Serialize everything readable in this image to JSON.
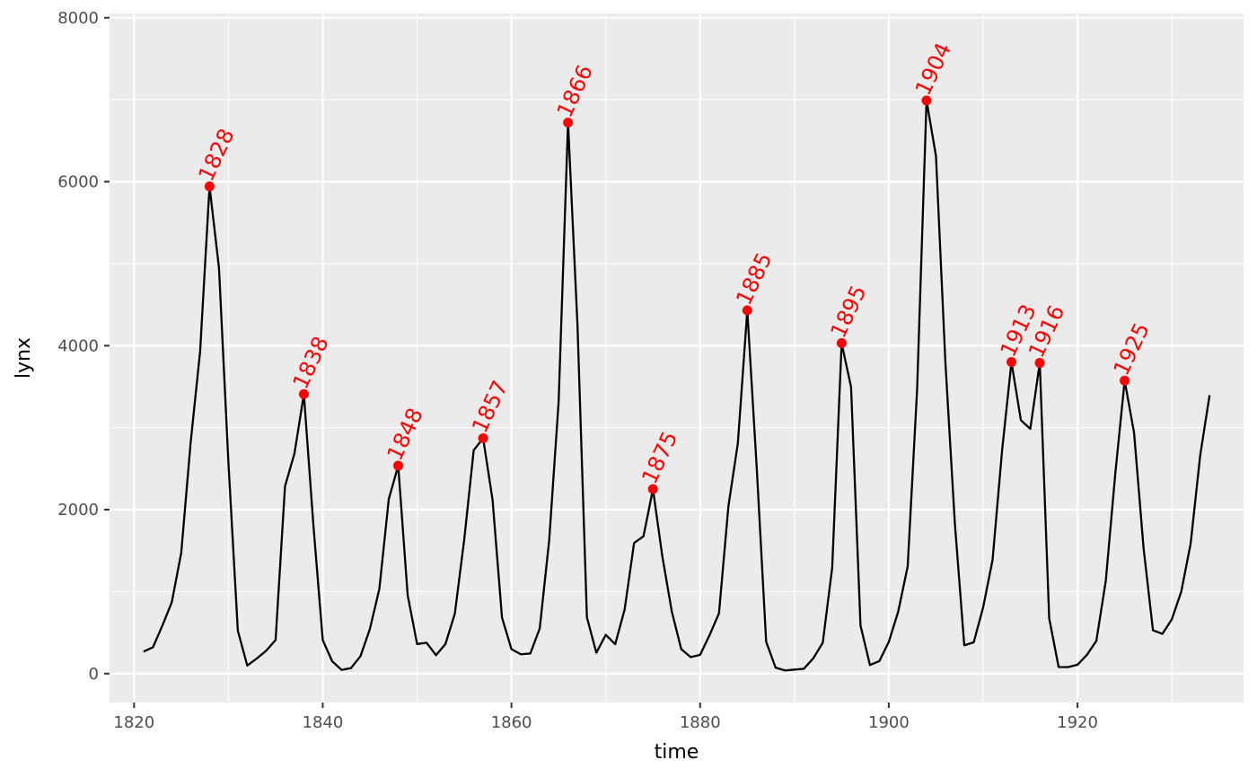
{
  "chart_data": {
    "type": "line",
    "xlabel": "time",
    "ylabel": "lynx",
    "xlim": [
      1817.4,
      1937.6
    ],
    "ylim": [
      -352.5,
      8052
    ],
    "x_ticks": [
      1820,
      1840,
      1860,
      1880,
      1900,
      1920
    ],
    "x_tick_labels": [
      "1820",
      "1840",
      "1860",
      "1880",
      "1900",
      "1920"
    ],
    "y_ticks": [
      0,
      2000,
      4000,
      6000,
      8000
    ],
    "y_tick_labels": [
      "0",
      "2000",
      "4000",
      "6000",
      "8000"
    ],
    "grid": true,
    "line_color": "#000000",
    "panel_color": "#ebebeb",
    "grid_color": "#ffffff",
    "series": [
      {
        "x": [
          1821,
          1822,
          1823,
          1824,
          1825,
          1826,
          1827,
          1828,
          1829,
          1830,
          1831,
          1832,
          1833,
          1834,
          1835,
          1836,
          1837,
          1838,
          1839,
          1840,
          1841,
          1842,
          1843,
          1844,
          1845,
          1846,
          1847,
          1848,
          1849,
          1850,
          1851,
          1852,
          1853,
          1854,
          1855,
          1856,
          1857,
          1858,
          1859,
          1860,
          1861,
          1862,
          1863,
          1864,
          1865,
          1866,
          1867,
          1868,
          1869,
          1870,
          1871,
          1872,
          1873,
          1874,
          1875,
          1876,
          1877,
          1878,
          1879,
          1880,
          1881,
          1882,
          1883,
          1884,
          1885,
          1886,
          1887,
          1888,
          1889,
          1890,
          1891,
          1892,
          1893,
          1894,
          1895,
          1896,
          1897,
          1898,
          1899,
          1900,
          1901,
          1902,
          1903,
          1904,
          1905,
          1906,
          1907,
          1908,
          1909,
          1910,
          1911,
          1912,
          1913,
          1914,
          1915,
          1916,
          1917,
          1918,
          1919,
          1920,
          1921,
          1922,
          1923,
          1924,
          1925,
          1926,
          1927,
          1928,
          1929,
          1930,
          1931,
          1932,
          1933,
          1934
        ],
        "values": [
          269,
          321,
          585,
          871,
          1475,
          2821,
          3928,
          5943,
          4950,
          2577,
          523,
          98,
          184,
          279,
          409,
          2285,
          2685,
          3409,
          1824,
          409,
          151,
          45,
          68,
          213,
          546,
          1033,
          2129,
          2536,
          957,
          361,
          377,
          225,
          360,
          731,
          1638,
          2725,
          2871,
          2119,
          684,
          299,
          236,
          245,
          552,
          1623,
          3311,
          6721,
          4254,
          687,
          255,
          473,
          358,
          784,
          1594,
          1676,
          2251,
          1426,
          756,
          299,
          201,
          229,
          469,
          736,
          2042,
          2811,
          4431,
          2511,
          389,
          73,
          39,
          49,
          59,
          188,
          377,
          1292,
          4031,
          3495,
          587,
          105,
          153,
          387,
          758,
          1307,
          3465,
          6991,
          6313,
          3794,
          1836,
          345,
          382,
          808,
          1388,
          2713,
          3800,
          3091,
          2985,
          3790,
          674,
          81,
          80,
          108,
          229,
          399,
          1132,
          2432,
          3574,
          2935,
          1537,
          529,
          485,
          662,
          1000,
          1590,
          2657,
          3396
        ]
      }
    ],
    "peaks": {
      "color": "#ff0000",
      "x": [
        1828,
        1838,
        1848,
        1857,
        1866,
        1875,
        1885,
        1895,
        1904,
        1913,
        1916,
        1925
      ],
      "values": [
        5943,
        3409,
        2536,
        2871,
        6721,
        2251,
        4431,
        4031,
        6991,
        3800,
        3790,
        3574
      ],
      "labels": [
        "1828",
        "1838",
        "1848",
        "1857",
        "1866",
        "1875",
        "1885",
        "1895",
        "1904",
        "1913",
        "1916",
        "1925"
      ]
    }
  }
}
